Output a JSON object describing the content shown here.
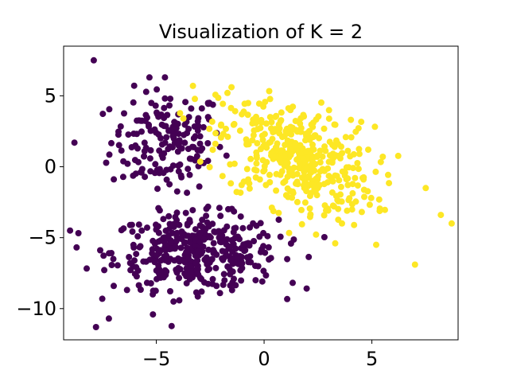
{
  "chart_data": {
    "type": "scatter",
    "title": "Visualization of K = 2",
    "xlabel": "",
    "ylabel": "",
    "xlim": [
      -9.3,
      9.0
    ],
    "ylim": [
      -12.2,
      8.5
    ],
    "x_ticks": [
      {
        "value": -5,
        "label": "−5"
      },
      {
        "value": 0,
        "label": "0"
      },
      {
        "value": 5,
        "label": "5"
      }
    ],
    "y_ticks": [
      {
        "value": 5,
        "label": "5"
      },
      {
        "value": 0,
        "label": "0"
      },
      {
        "value": -5,
        "label": "−5"
      },
      {
        "value": -10,
        "label": "−10"
      }
    ],
    "grid": false,
    "legend": "none",
    "series": [
      {
        "color": "#440154",
        "blobs": [
          {
            "center": [
              -4.5,
              1.8
            ],
            "spread": [
              1.3,
              1.8
            ],
            "n": 170
          },
          {
            "center": [
              -3.2,
              -6.0
            ],
            "spread": [
              1.9,
              1.3
            ],
            "n": 400
          }
        ],
        "extreme_points": [
          [
            -7.9,
            7.5
          ],
          [
            -4.6,
            6.3
          ],
          [
            -8.8,
            1.7
          ],
          [
            -7.8,
            -11.3
          ],
          [
            -2.9,
            -8.8
          ],
          [
            -1.1,
            -7.3
          ],
          [
            -7.2,
            -10.7
          ],
          [
            -4.2,
            -9.5
          ]
        ]
      },
      {
        "color": "#fde725",
        "blobs": [
          {
            "center": [
              1.5,
              0.6
            ],
            "spread": [
              1.8,
              1.9
            ],
            "n": 430
          }
        ],
        "extreme_points": [
          [
            -3.3,
            5.7
          ],
          [
            8.7,
            -4.0
          ],
          [
            7.0,
            -6.9
          ],
          [
            5.2,
            -5.5
          ],
          [
            3.3,
            -5.4
          ],
          [
            8.2,
            -3.4
          ],
          [
            7.5,
            -1.5
          ],
          [
            -1.7,
            5.2
          ]
        ]
      }
    ]
  }
}
